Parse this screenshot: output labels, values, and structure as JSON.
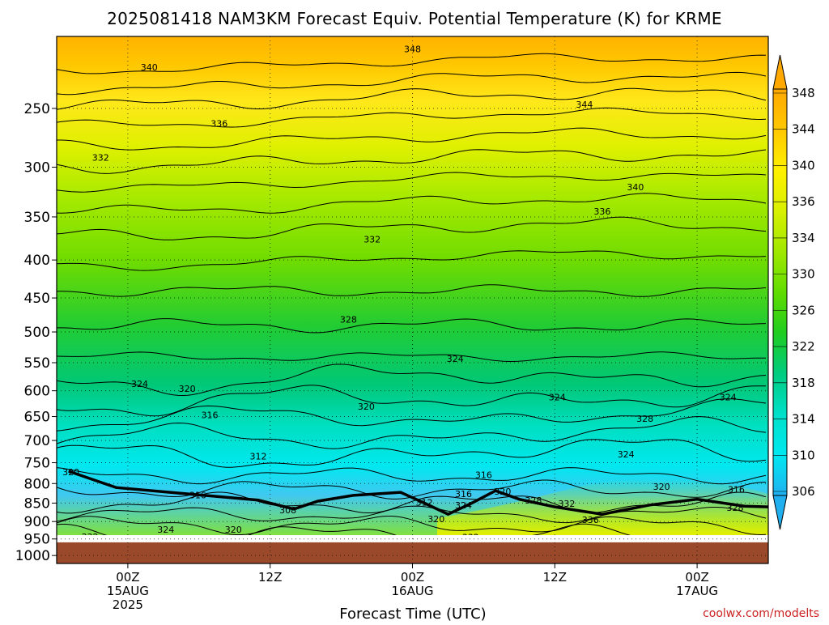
{
  "credit": "coolwx.com/modelts",
  "colors": {
    "ground": "#9a4a2a",
    "credit": "#cc2222",
    "contour": "#000000",
    "grid": "#000000"
  },
  "chart_data": {
    "type": "heatmap",
    "title": "2025081418 NAM3KM Forecast Equiv. Potential Temperature (K) for KRME",
    "xlabel": "Forecast Time (UTC)",
    "ylabel": "",
    "y_axis": {
      "scale": "pressure",
      "ticks": [
        250,
        300,
        350,
        400,
        450,
        500,
        550,
        600,
        650,
        700,
        750,
        800,
        850,
        900,
        950,
        1000
      ],
      "tick_labels": [
        "250",
        "300",
        "350",
        "400",
        "450",
        "500",
        "550",
        "600",
        "650",
        "700",
        "750",
        "800",
        "850",
        "900",
        "950",
        "1000"
      ],
      "range": [
        200,
        1025
      ],
      "ground_level": 960
    },
    "x_axis": {
      "range_hours": [
        -6,
        54
      ],
      "ticks": [
        {
          "hour": 0,
          "lines": [
            "00Z",
            "15AUG",
            "2025"
          ]
        },
        {
          "hour": 12,
          "lines": [
            "12Z"
          ]
        },
        {
          "hour": 24,
          "lines": [
            "00Z",
            "16AUG"
          ]
        },
        {
          "hour": 36,
          "lines": [
            "12Z"
          ]
        },
        {
          "hour": 48,
          "lines": [
            "00Z",
            "17AUG"
          ]
        }
      ]
    },
    "grid": true,
    "colorbar": {
      "placement": "right",
      "levels": [
        306,
        310,
        314,
        318,
        322,
        326,
        330,
        334,
        336,
        340,
        344,
        348
      ],
      "labels": [
        "306",
        "310",
        "314",
        "318",
        "322",
        "326",
        "330",
        "334",
        "336",
        "340",
        "344",
        "348"
      ]
    },
    "contour_labels": [
      {
        "text": "348",
        "hour": 24.0,
        "p": 208
      },
      {
        "text": "340",
        "hour": 1.8,
        "p": 220
      },
      {
        "text": "344",
        "hour": 38.5,
        "p": 247
      },
      {
        "text": "336",
        "hour": 7.7,
        "p": 262
      },
      {
        "text": "332",
        "hour": -2.3,
        "p": 291
      },
      {
        "text": "340",
        "hour": 42.8,
        "p": 319
      },
      {
        "text": "336",
        "hour": 40.0,
        "p": 344
      },
      {
        "text": "332",
        "hour": 20.6,
        "p": 375
      },
      {
        "text": "328",
        "hour": 18.6,
        "p": 481
      },
      {
        "text": "324",
        "hour": 27.6,
        "p": 543
      },
      {
        "text": "324",
        "hour": 1.0,
        "p": 587
      },
      {
        "text": "320",
        "hour": 5.0,
        "p": 596
      },
      {
        "text": "316",
        "hour": 6.9,
        "p": 647
      },
      {
        "text": "320",
        "hour": 20.1,
        "p": 630
      },
      {
        "text": "324",
        "hour": 36.2,
        "p": 612
      },
      {
        "text": "328",
        "hour": 43.6,
        "p": 654
      },
      {
        "text": "324",
        "hour": 50.6,
        "p": 612
      },
      {
        "text": "312",
        "hour": 11.0,
        "p": 735
      },
      {
        "text": "324",
        "hour": 42.0,
        "p": 730
      },
      {
        "text": "320",
        "hour": -4.8,
        "p": 772
      },
      {
        "text": "316",
        "hour": 30.0,
        "p": 779
      },
      {
        "text": "316",
        "hour": 5.9,
        "p": 829
      },
      {
        "text": "308",
        "hour": 13.5,
        "p": 868
      },
      {
        "text": "312",
        "hour": 25.0,
        "p": 848
      },
      {
        "text": "316",
        "hour": 28.3,
        "p": 826
      },
      {
        "text": "324",
        "hour": 28.3,
        "p": 855
      },
      {
        "text": "320",
        "hour": 31.6,
        "p": 820
      },
      {
        "text": "328",
        "hour": 34.2,
        "p": 843
      },
      {
        "text": "332",
        "hour": 37.0,
        "p": 851
      },
      {
        "text": "320",
        "hour": 45.0,
        "p": 808
      },
      {
        "text": "316",
        "hour": 51.3,
        "p": 815
      },
      {
        "text": "328",
        "hour": 51.2,
        "p": 862
      },
      {
        "text": "320",
        "hour": 26.0,
        "p": 893
      },
      {
        "text": "336",
        "hour": 39.0,
        "p": 895
      },
      {
        "text": "324",
        "hour": 3.2,
        "p": 923
      },
      {
        "text": "320",
        "hour": 8.9,
        "p": 923
      },
      {
        "text": "332",
        "hour": -3.2,
        "p": 943
      },
      {
        "text": "332",
        "hour": 28.9,
        "p": 945
      }
    ]
  }
}
